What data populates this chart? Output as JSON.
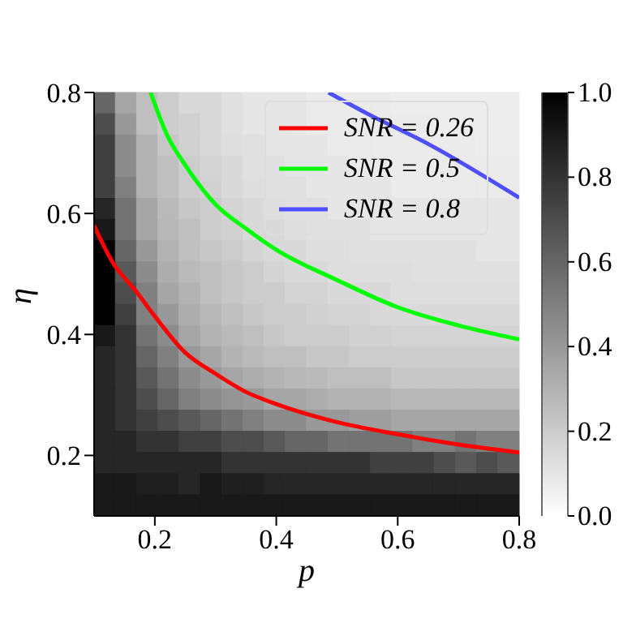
{
  "chart_data": {
    "type": "heatmap",
    "xlabel": "p",
    "ylabel": "η",
    "x": [
      0.1175,
      0.1525,
      0.1875,
      0.2225,
      0.2575,
      0.2925,
      0.3275,
      0.3625,
      0.3975,
      0.4325,
      0.4675,
      0.5025,
      0.5375,
      0.5725,
      0.6075,
      0.6425,
      0.6775,
      0.7125,
      0.7475,
      0.7825
    ],
    "y": [
      0.7825,
      0.7475,
      0.7125,
      0.6775,
      0.6425,
      0.6075,
      0.5725,
      0.5375,
      0.5025,
      0.4675,
      0.4325,
      0.3975,
      0.3625,
      0.3275,
      0.2925,
      0.2575,
      0.2225,
      0.1875,
      0.1525,
      0.1175
    ],
    "cells": [
      [
        0.6,
        0.35,
        0.25,
        0.2,
        0.15,
        0.15,
        0.12,
        0.1,
        0.1,
        0.1,
        0.08,
        0.08,
        0.08,
        0.08,
        0.07,
        0.07,
        0.07,
        0.07,
        0.07,
        0.07
      ],
      [
        0.7,
        0.4,
        0.25,
        0.2,
        0.18,
        0.15,
        0.12,
        0.1,
        0.1,
        0.1,
        0.08,
        0.08,
        0.08,
        0.08,
        0.08,
        0.08,
        0.07,
        0.07,
        0.07,
        0.07
      ],
      [
        0.75,
        0.45,
        0.3,
        0.22,
        0.18,
        0.15,
        0.13,
        0.12,
        0.1,
        0.1,
        0.1,
        0.08,
        0.08,
        0.08,
        0.08,
        0.08,
        0.08,
        0.08,
        0.07,
        0.07
      ],
      [
        0.75,
        0.45,
        0.3,
        0.25,
        0.2,
        0.17,
        0.15,
        0.12,
        0.12,
        0.1,
        0.1,
        0.1,
        0.08,
        0.08,
        0.08,
        0.08,
        0.08,
        0.08,
        0.08,
        0.08
      ],
      [
        0.75,
        0.5,
        0.3,
        0.25,
        0.2,
        0.18,
        0.15,
        0.13,
        0.12,
        0.12,
        0.1,
        0.1,
        0.1,
        0.1,
        0.08,
        0.08,
        0.08,
        0.08,
        0.08,
        0.08
      ],
      [
        0.85,
        0.55,
        0.35,
        0.27,
        0.22,
        0.2,
        0.17,
        0.15,
        0.13,
        0.12,
        0.12,
        0.1,
        0.1,
        0.1,
        0.1,
        0.1,
        0.1,
        0.1,
        0.1,
        0.1
      ],
      [
        0.9,
        0.55,
        0.35,
        0.28,
        0.25,
        0.2,
        0.18,
        0.15,
        0.15,
        0.13,
        0.12,
        0.12,
        0.12,
        0.1,
        0.1,
        0.1,
        0.1,
        0.1,
        0.1,
        0.1
      ],
      [
        1.0,
        0.6,
        0.4,
        0.3,
        0.25,
        0.22,
        0.2,
        0.17,
        0.15,
        0.15,
        0.13,
        0.13,
        0.12,
        0.12,
        0.12,
        0.12,
        0.12,
        0.12,
        0.1,
        0.1
      ],
      [
        1.0,
        0.65,
        0.45,
        0.32,
        0.27,
        0.25,
        0.22,
        0.2,
        0.17,
        0.15,
        0.15,
        0.13,
        0.13,
        0.13,
        0.13,
        0.12,
        0.12,
        0.12,
        0.12,
        0.12
      ],
      [
        1.0,
        0.7,
        0.5,
        0.35,
        0.3,
        0.25,
        0.22,
        0.2,
        0.2,
        0.17,
        0.17,
        0.15,
        0.15,
        0.15,
        0.13,
        0.13,
        0.13,
        0.13,
        0.13,
        0.13
      ],
      [
        1.0,
        0.75,
        0.5,
        0.4,
        0.32,
        0.28,
        0.25,
        0.22,
        0.2,
        0.2,
        0.18,
        0.17,
        0.17,
        0.15,
        0.15,
        0.15,
        0.15,
        0.15,
        0.15,
        0.15
      ],
      [
        0.9,
        0.8,
        0.55,
        0.45,
        0.35,
        0.3,
        0.27,
        0.25,
        0.22,
        0.2,
        0.2,
        0.2,
        0.18,
        0.18,
        0.17,
        0.17,
        0.17,
        0.17,
        0.17,
        0.17
      ],
      [
        0.85,
        0.8,
        0.6,
        0.5,
        0.4,
        0.35,
        0.3,
        0.27,
        0.25,
        0.25,
        0.22,
        0.22,
        0.2,
        0.2,
        0.2,
        0.2,
        0.2,
        0.2,
        0.2,
        0.2
      ],
      [
        0.85,
        0.8,
        0.65,
        0.55,
        0.45,
        0.4,
        0.35,
        0.32,
        0.3,
        0.28,
        0.27,
        0.25,
        0.25,
        0.25,
        0.22,
        0.22,
        0.22,
        0.22,
        0.22,
        0.22
      ],
      [
        0.85,
        0.8,
        0.7,
        0.6,
        0.5,
        0.45,
        0.42,
        0.4,
        0.35,
        0.35,
        0.32,
        0.3,
        0.3,
        0.3,
        0.28,
        0.28,
        0.28,
        0.28,
        0.28,
        0.28
      ],
      [
        0.85,
        0.8,
        0.75,
        0.7,
        0.65,
        0.6,
        0.55,
        0.5,
        0.45,
        0.45,
        0.4,
        0.4,
        0.38,
        0.38,
        0.35,
        0.35,
        0.35,
        0.35,
        0.35,
        0.35
      ],
      [
        0.85,
        0.85,
        0.8,
        0.8,
        0.75,
        0.75,
        0.7,
        0.7,
        0.65,
        0.6,
        0.6,
        0.55,
        0.55,
        0.55,
        0.55,
        0.5,
        0.5,
        0.55,
        0.5,
        0.5
      ],
      [
        0.85,
        0.85,
        0.85,
        0.85,
        0.85,
        0.85,
        0.8,
        0.8,
        0.8,
        0.8,
        0.8,
        0.8,
        0.8,
        0.75,
        0.75,
        0.75,
        0.7,
        0.65,
        0.7,
        0.65
      ],
      [
        0.9,
        0.9,
        0.88,
        0.88,
        0.85,
        0.9,
        0.88,
        0.88,
        0.85,
        0.85,
        0.85,
        0.85,
        0.85,
        0.85,
        0.85,
        0.85,
        0.85,
        0.85,
        0.85,
        0.85
      ],
      [
        0.9,
        0.9,
        0.9,
        0.9,
        0.9,
        0.9,
        0.9,
        0.9,
        0.9,
        0.9,
        0.9,
        0.9,
        0.9,
        0.9,
        0.9,
        0.9,
        0.9,
        0.9,
        0.9,
        0.9
      ]
    ],
    "xlim": [
      0.1,
      0.8
    ],
    "ylim": [
      0.1,
      0.8
    ],
    "xticks": [
      0.2,
      0.4,
      0.6,
      0.8
    ],
    "yticks": [
      0.2,
      0.4,
      0.6,
      0.8
    ],
    "clim": [
      0,
      1
    ],
    "cticks": [
      {
        "value": 0,
        "label": "0.0"
      },
      0.2,
      0.4,
      0.6,
      0.8,
      {
        "value": 1,
        "label": "1.0"
      }
    ],
    "legend": "top right",
    "series": [
      {
        "type": "line",
        "name": "SNR = 0.26",
        "color": "#ff0000",
        "x": [
          0.1,
          0.13,
          0.17,
          0.2,
          0.25,
          0.3,
          0.35,
          0.4,
          0.5,
          0.6,
          0.7,
          0.8
        ],
        "values": [
          0.58,
          0.52,
          0.47,
          0.43,
          0.37,
          0.335,
          0.305,
          0.285,
          0.255,
          0.235,
          0.218,
          0.205
        ]
      },
      {
        "type": "line",
        "name": "SNR = 0.5",
        "color": "#00ff00",
        "x": [
          0.193,
          0.22,
          0.25,
          0.3,
          0.35,
          0.4,
          0.5,
          0.6,
          0.7,
          0.8
        ],
        "values": [
          0.8,
          0.73,
          0.68,
          0.615,
          0.575,
          0.54,
          0.49,
          0.445,
          0.415,
          0.392
        ]
      },
      {
        "type": "line",
        "name": "SNR = 0.8",
        "color": "#4f4fff",
        "x": [
          0.486,
          0.55,
          0.65,
          0.8
        ],
        "values": [
          0.8,
          0.765,
          0.715,
          0.626
        ]
      }
    ]
  }
}
